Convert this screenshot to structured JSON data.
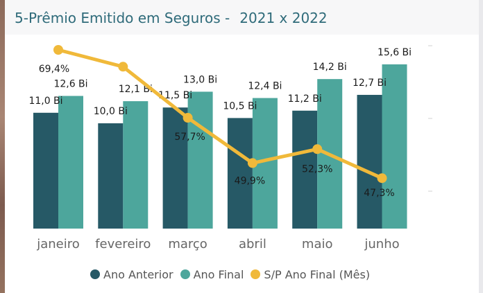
{
  "title": "5-Prêmio Emitido em Seguros -",
  "title_years": "2021 x 2022",
  "colors": {
    "ano_anterior": "#265966",
    "ano_final": "#4da69c",
    "sp": "#f0b93a"
  },
  "chart_data": {
    "type": "bar",
    "categories": [
      "janeiro",
      "fevereiro",
      "março",
      "abril",
      "maio",
      "junho"
    ],
    "series": [
      {
        "name": "Ano Anterior",
        "values": [
          11.0,
          10.0,
          11.5,
          10.5,
          11.2,
          12.7
        ],
        "labels": [
          "11,0 Bi",
          "10,0 Bi",
          "11,5 Bi",
          "10,5 Bi",
          "11,2 Bi",
          "12,7 Bi"
        ]
      },
      {
        "name": "Ano Final",
        "values": [
          12.6,
          12.1,
          13.0,
          12.4,
          14.2,
          15.6
        ],
        "labels": [
          "12,6 Bi",
          "12,1 Bi",
          "13,0 Bi",
          "12,4 Bi",
          "14,2 Bi",
          "15,6 Bi"
        ]
      },
      {
        "name": "S/P Ano Final (Mês)",
        "type": "line",
        "values": [
          69.4,
          66.5,
          57.7,
          49.9,
          52.3,
          47.3
        ],
        "labels": [
          "69,4%",
          "",
          "57,7%",
          "49,9%",
          "52,3%",
          "47,3%"
        ]
      }
    ],
    "legend_position": "bottom",
    "grid": false
  }
}
